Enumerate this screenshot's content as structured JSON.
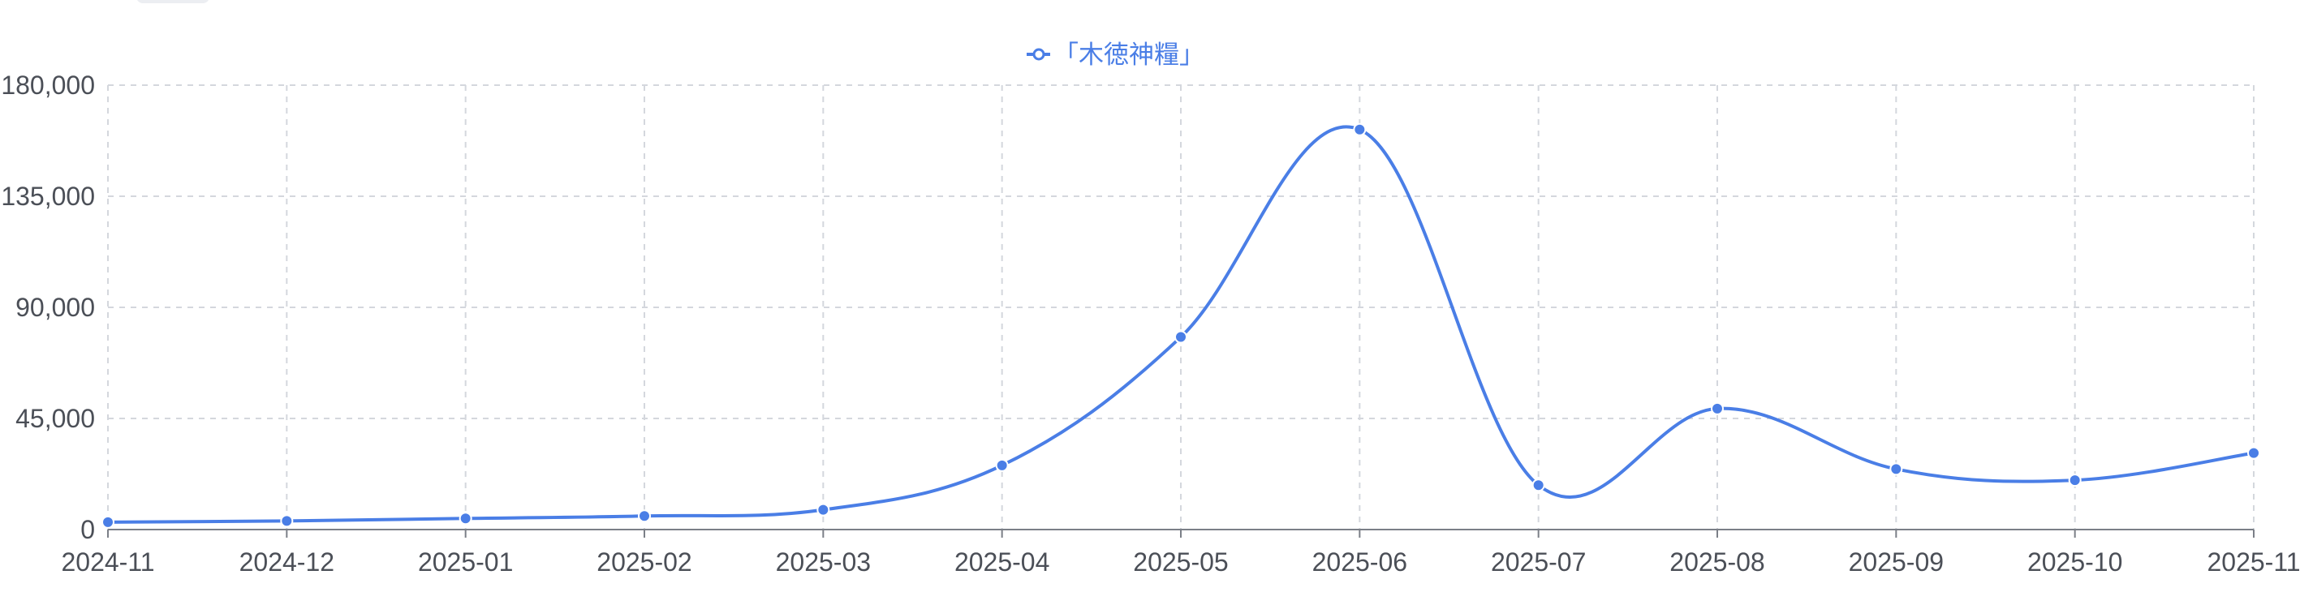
{
  "chart_data": {
    "type": "line",
    "title": "",
    "xlabel": "",
    "ylabel": "",
    "legend_position": "top-center",
    "grid": true,
    "x": [
      "2024-11",
      "2024-12",
      "2025-01",
      "2025-02",
      "2025-03",
      "2025-04",
      "2025-05",
      "2025-06",
      "2025-07",
      "2025-08",
      "2025-09",
      "2025-10",
      "2025-11"
    ],
    "ylim": [
      0,
      180000
    ],
    "y_ticks": [
      0,
      45000,
      90000,
      135000,
      180000
    ],
    "y_tick_labels": [
      "0",
      "45,000",
      "90,000",
      "135,000",
      "180,000"
    ],
    "series": [
      {
        "name": "「木徳神糧」",
        "values": [
          3000,
          3500,
          4500,
          5500,
          8000,
          26000,
          78000,
          162000,
          18000,
          49000,
          24500,
          20000,
          31000
        ],
        "color": "#4a7ee6",
        "highlight_last_color": "#d03a4a"
      }
    ]
  }
}
